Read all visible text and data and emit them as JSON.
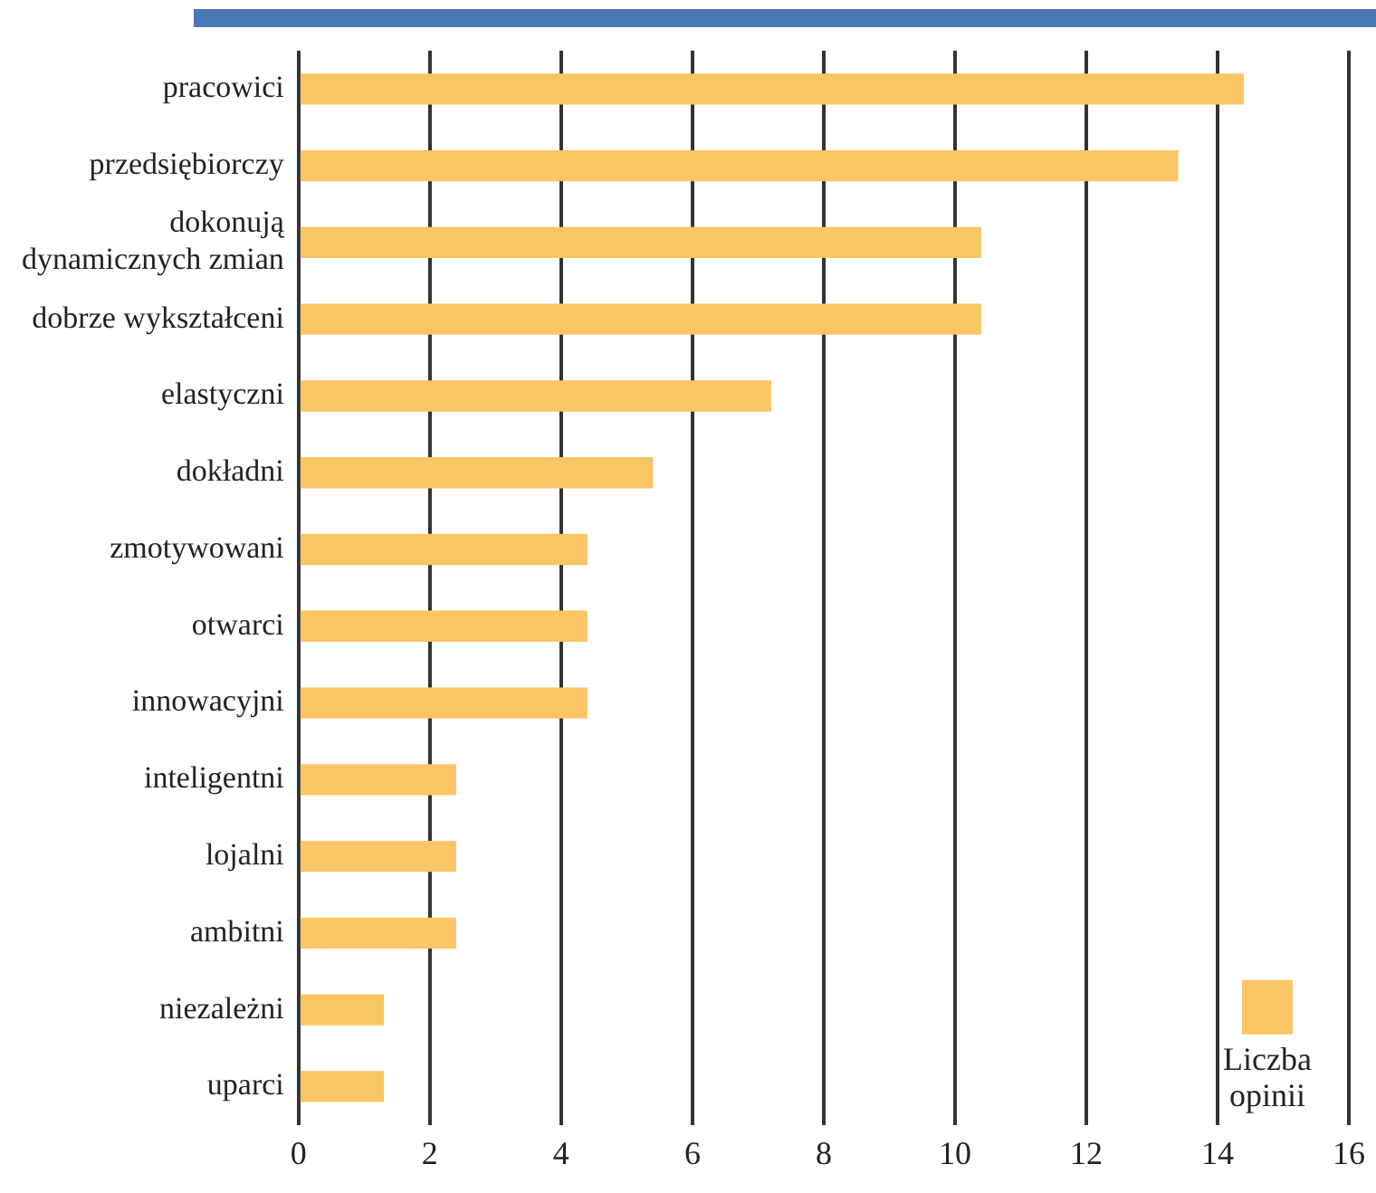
{
  "chart_data": {
    "type": "bar",
    "orientation": "horizontal",
    "categories": [
      "pracowici",
      "przedsiębiorczy",
      "dokonują dynamicznych zmian",
      "dobrze wykształceni",
      "elastyczni",
      "dokładni",
      "zmotywowani",
      "otwarci",
      "innowacyjni",
      "inteligentni",
      "lojalni",
      "ambitni",
      "niezależni",
      "uparci"
    ],
    "series": [
      {
        "name": "Liczba opinii",
        "color": "#fac564",
        "values": [
          14.4,
          13.4,
          10.4,
          10.4,
          7.2,
          5.4,
          4.4,
          4.4,
          4.4,
          2.4,
          2.4,
          2.4,
          1.3,
          1.3
        ]
      }
    ],
    "xlim": [
      0,
      16
    ],
    "xticks": [
      0,
      2,
      4,
      6,
      8,
      10,
      12,
      14,
      16
    ],
    "grid": "x",
    "legend": "bottom right"
  }
}
